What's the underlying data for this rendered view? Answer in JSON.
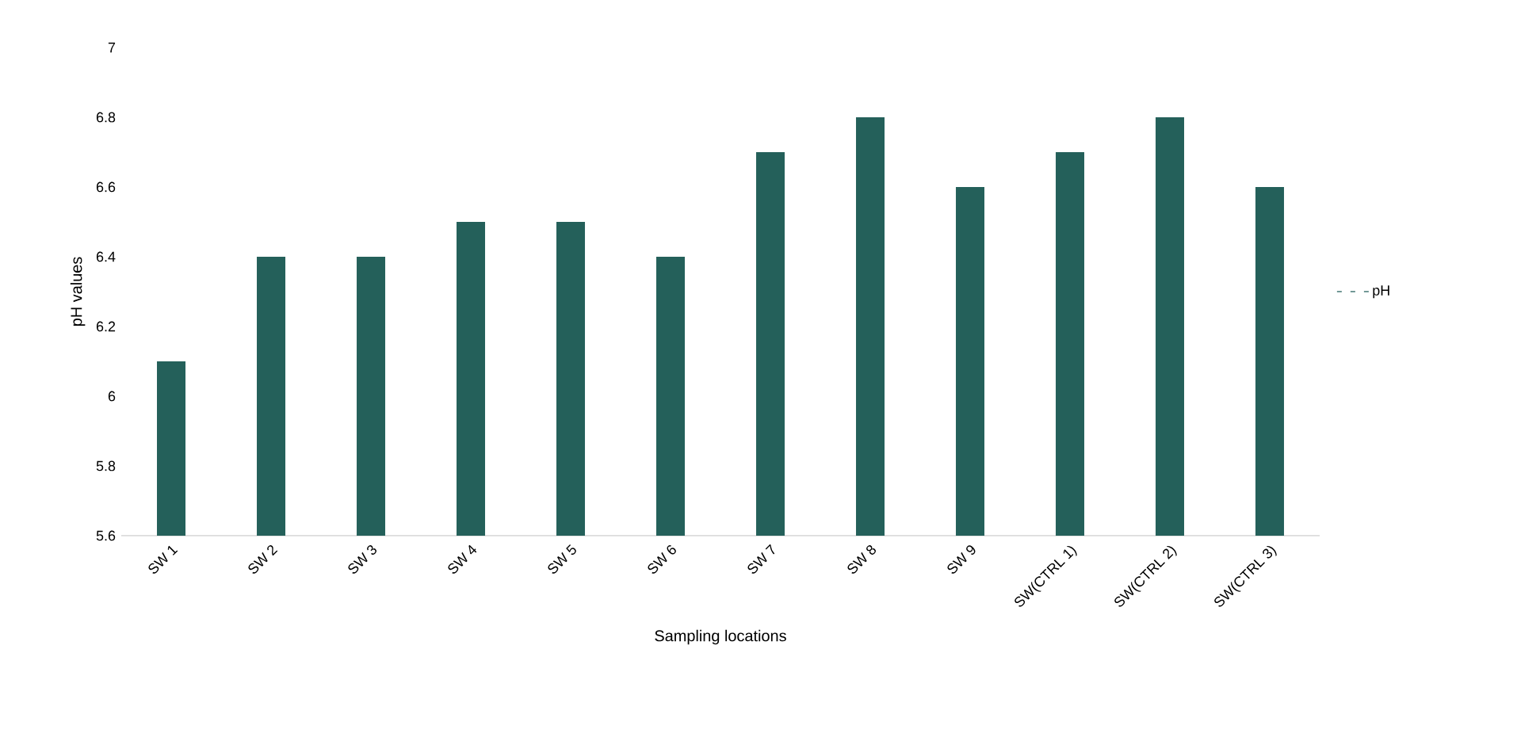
{
  "chart_data": {
    "type": "bar",
    "xlabel": "Sampling locations",
    "ylabel": "pH values",
    "categories": [
      "SW 1",
      "SW 2",
      "SW 3",
      "SW 4",
      "SW 5",
      "SW 6",
      "SW 7",
      "SW 8",
      "SW 9",
      "SW(CTRL 1)",
      "SW(CTRL 2)",
      "SW(CTRL 3)"
    ],
    "series": [
      {
        "name": "pH",
        "color": "#24605a",
        "values": [
          6.1,
          6.4,
          6.4,
          6.5,
          6.5,
          6.4,
          6.7,
          6.8,
          6.6,
          6.7,
          6.8,
          6.6
        ]
      }
    ],
    "ylim": [
      5.6,
      7
    ],
    "yticks": [
      5.6,
      5.8,
      6,
      6.2,
      6.4,
      6.6,
      6.8,
      7
    ],
    "grid": false,
    "legend": "right"
  }
}
